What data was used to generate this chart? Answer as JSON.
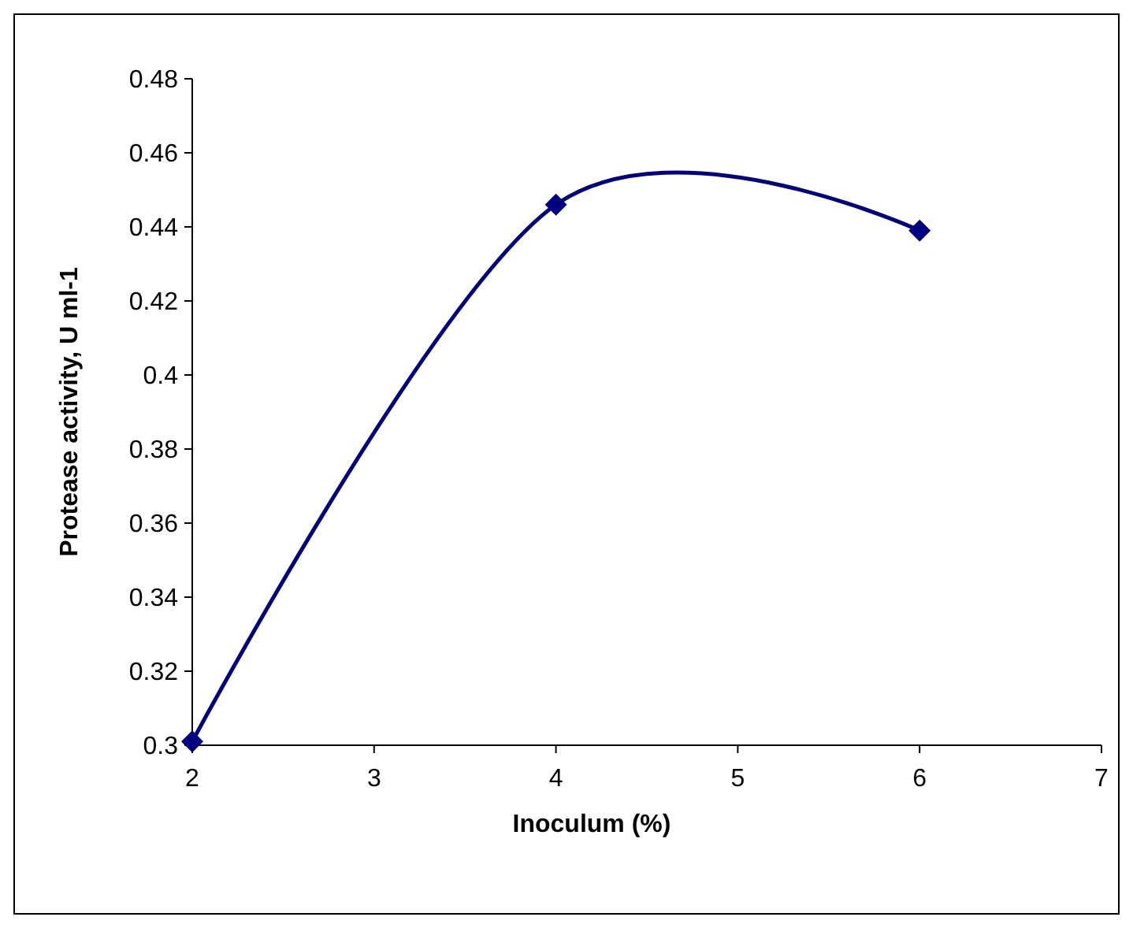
{
  "chart_data": {
    "type": "line",
    "xlabel": "Inoculum (%)",
    "ylabel": "Protease activity, U ml-1",
    "x": [
      2,
      4,
      6
    ],
    "series": [
      {
        "color": "#000080",
        "values": [
          0.301,
          0.446,
          0.439
        ]
      }
    ],
    "xlim": [
      2,
      7
    ],
    "xticks": [
      2,
      3,
      4,
      5,
      6,
      7
    ],
    "ylim": [
      0.3,
      0.48
    ],
    "yticks": [
      0.3,
      0.32,
      0.34,
      0.36,
      0.38,
      0.4,
      0.42,
      0.44,
      0.46,
      0.48
    ],
    "grid": false,
    "marker": "diamond",
    "line_style": "solid"
  }
}
